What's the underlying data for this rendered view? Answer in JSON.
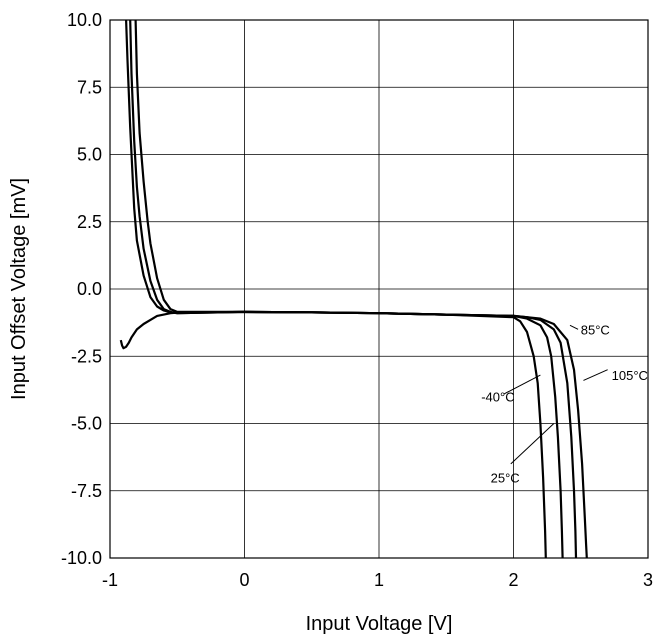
{
  "chart_data": {
    "type": "line",
    "title": "",
    "xlabel": "Input Voltage [V]",
    "ylabel": "Input Offset Voltage [mV]",
    "xlim": [
      -1,
      3
    ],
    "ylim": [
      -10,
      10
    ],
    "x_ticks": [
      -1,
      0,
      1,
      2,
      3
    ],
    "x_tick_labels": [
      "-1",
      "0",
      "1",
      "2",
      "3"
    ],
    "y_ticks": [
      10,
      7.5,
      5,
      2.5,
      0,
      -2.5,
      -5,
      -7.5,
      -10
    ],
    "y_tick_labels": [
      "10.0",
      "7.5",
      "5.0",
      "2.5",
      "0.0",
      "-2.5",
      "-5.0",
      "-7.5",
      "-10.0"
    ],
    "grid": true,
    "series": [
      {
        "name": "-40°C",
        "x": [
          -0.92,
          -0.91,
          -0.9,
          -0.88,
          -0.86,
          -0.84,
          -0.8,
          -0.75,
          -0.7,
          -0.65,
          -0.6,
          -0.55,
          -0.5,
          0,
          0.5,
          1,
          1.5,
          2,
          2.05,
          2.1,
          2.15,
          2.18,
          2.2,
          2.22,
          2.235,
          2.24
        ],
        "y": [
          -1.9,
          -2.1,
          -2.2,
          -2.15,
          -2.0,
          -1.8,
          -1.5,
          -1.3,
          -1.15,
          -1.0,
          -0.95,
          -0.9,
          -0.88,
          -0.85,
          -0.87,
          -0.9,
          -0.95,
          -1.05,
          -1.2,
          -1.6,
          -2.5,
          -3.5,
          -5.0,
          -7.0,
          -9.0,
          -10.0
        ]
      },
      {
        "name": "25°C",
        "x": [
          -0.88,
          -0.87,
          -0.85,
          -0.82,
          -0.8,
          -0.75,
          -0.7,
          -0.65,
          -0.6,
          -0.55,
          -0.5,
          0,
          0.5,
          1,
          1.5,
          2,
          2.1,
          2.2,
          2.25,
          2.28,
          2.31,
          2.33,
          2.35,
          2.36,
          2.365
        ],
        "y": [
          10.0,
          8.5,
          6.0,
          3.0,
          1.8,
          0.5,
          -0.3,
          -0.65,
          -0.8,
          -0.87,
          -0.9,
          -0.85,
          -0.87,
          -0.9,
          -0.95,
          -1.0,
          -1.1,
          -1.35,
          -1.8,
          -2.5,
          -4.0,
          -5.5,
          -7.5,
          -9.0,
          -10.0
        ]
      },
      {
        "name": "85°C",
        "x": [
          -0.85,
          -0.84,
          -0.82,
          -0.8,
          -0.78,
          -0.75,
          -0.7,
          -0.65,
          -0.6,
          -0.55,
          -0.5,
          0,
          0.5,
          1,
          1.5,
          2,
          2.1,
          2.2,
          2.3,
          2.35,
          2.4,
          2.43,
          2.45,
          2.46,
          2.465
        ],
        "y": [
          10.0,
          8.0,
          5.5,
          3.8,
          2.7,
          1.5,
          0.3,
          -0.4,
          -0.75,
          -0.85,
          -0.9,
          -0.85,
          -0.87,
          -0.9,
          -0.95,
          -1.0,
          -1.05,
          -1.15,
          -1.5,
          -2.0,
          -3.5,
          -5.5,
          -7.5,
          -9.0,
          -10.0
        ]
      },
      {
        "name": "105°C",
        "x": [
          -0.81,
          -0.8,
          -0.78,
          -0.75,
          -0.72,
          -0.7,
          -0.65,
          -0.6,
          -0.55,
          -0.5,
          0,
          0.5,
          1,
          1.5,
          2,
          2.2,
          2.3,
          2.4,
          2.45,
          2.48,
          2.51,
          2.53,
          2.54,
          2.545
        ],
        "y": [
          10.0,
          8.0,
          5.8,
          4.0,
          2.5,
          1.7,
          0.4,
          -0.4,
          -0.75,
          -0.85,
          -0.85,
          -0.87,
          -0.9,
          -0.95,
          -1.0,
          -1.1,
          -1.3,
          -1.9,
          -3.0,
          -4.5,
          -6.5,
          -8.5,
          -9.5,
          -10.0
        ]
      }
    ],
    "annotations": [
      {
        "text": "85°C",
        "x": 2.5,
        "y": -1.5
      },
      {
        "text": "105°C",
        "x": 2.73,
        "y": -3.2
      },
      {
        "text": "-40°C",
        "x": 1.76,
        "y": -4.0
      },
      {
        "text": "25°C",
        "x": 1.83,
        "y": -7.0
      }
    ]
  }
}
